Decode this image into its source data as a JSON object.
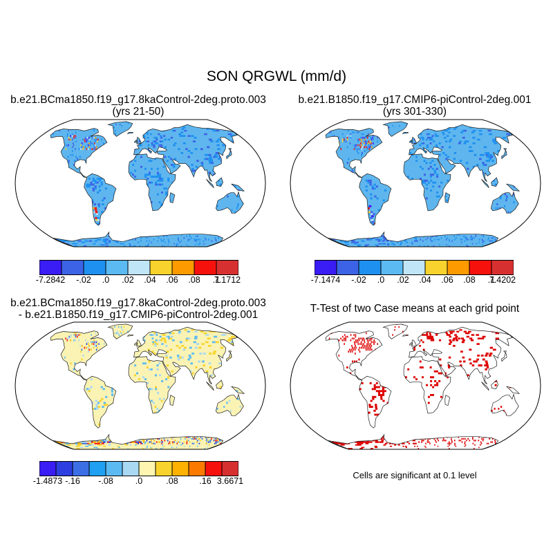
{
  "figure": {
    "title": "SON QRGWL (mm/d)"
  },
  "panels": {
    "top_left": {
      "title_line1": "b.e21.BCma1850.f19_g17.8kaControl-2deg.proto.003",
      "title_line2": "(yrs 21-50)",
      "colorbar": {
        "colors": [
          "#3a1cf5",
          "#3c63e6",
          "#1e90f0",
          "#5cbaf2",
          "#bfe5f7",
          "#f9d32d",
          "#fd9a00",
          "#f7110d",
          "#d73030"
        ],
        "labels": [
          "-7.2842",
          "-.02",
          ".0",
          ".02",
          ".04",
          ".06",
          ".08",
          ".1",
          "7.1712"
        ]
      }
    },
    "top_right": {
      "title_line1": "b.e21.B1850.f19_g17.CMIP6-piControl-2deg.001",
      "title_line2": "(yrs 301-330)",
      "colorbar": {
        "colors": [
          "#3a1cf5",
          "#3c63e6",
          "#1e90f0",
          "#5cbaf2",
          "#bfe5f7",
          "#f9d32d",
          "#fd9a00",
          "#f7110d",
          "#d73030"
        ],
        "labels": [
          "-7.1474",
          "-.02",
          ".0",
          ".02",
          ".04",
          ".06",
          ".08",
          ".1",
          "7.4202"
        ]
      }
    },
    "bottom_left": {
      "title_line1": "b.e21.BCma1850.f19_g17.8kaControl-2deg.proto.003",
      "title_line2": "- b.e21.B1850.f19_g17.CMIP6-piControl-2deg.001",
      "colorbar": {
        "colors": [
          "#3a1cf5",
          "#2c3fe0",
          "#3c6ee6",
          "#1fa0f2",
          "#5cbaf2",
          "#a9d8f3",
          "#fdf5b0",
          "#f9d32d",
          "#fdb100",
          "#fd7a00",
          "#f7110d",
          "#d73030"
        ],
        "labels": [
          "-1.4873",
          "-.16",
          "-.08",
          ".0",
          ".08",
          ".16",
          "3.6671"
        ]
      }
    },
    "bottom_right": {
      "title": "T-Test of two Case means at each grid point",
      "note": "Cells are significant at 0.1 level"
    }
  },
  "map_style": {
    "ocean": "#ffffff",
    "top_land": "#5fb6ee",
    "diff_land": "#faf3b4",
    "sig_land": "#ffffff",
    "sig_cells": "#dd0000",
    "coast": "#1a1a1a"
  }
}
